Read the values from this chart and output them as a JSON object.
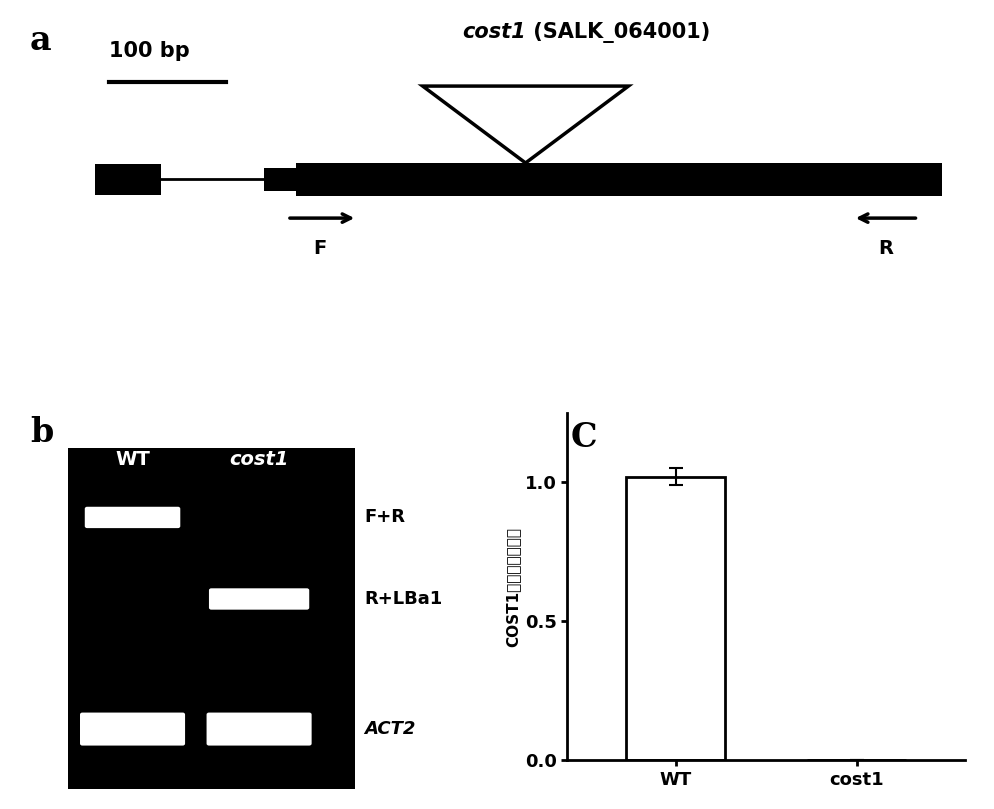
{
  "bg_color": "#ffffff",
  "panel_a": {
    "scale_bar_label": "100 bp",
    "gene_name": "cost1",
    "salk_label": " (SALK_064001)",
    "arrow_F_label": "F",
    "arrow_R_label": "R"
  },
  "panel_b": {
    "bg_color": "#000000",
    "wt_label": "WT",
    "cost1_label": "cost1",
    "band_labels": [
      "F+R",
      "R+LBa1",
      "ACT2"
    ]
  },
  "panel_c": {
    "categories": [
      "WT",
      "cost1"
    ],
    "values": [
      1.02,
      0.0
    ],
    "error": [
      0.03,
      0.0
    ],
    "ylabel": "COST1基因相对表达量",
    "yticks": [
      0.0,
      0.5,
      1.0
    ],
    "ylim": [
      0.0,
      1.25
    ],
    "bar_color": "#ffffff",
    "bar_edge_color": "#000000"
  }
}
